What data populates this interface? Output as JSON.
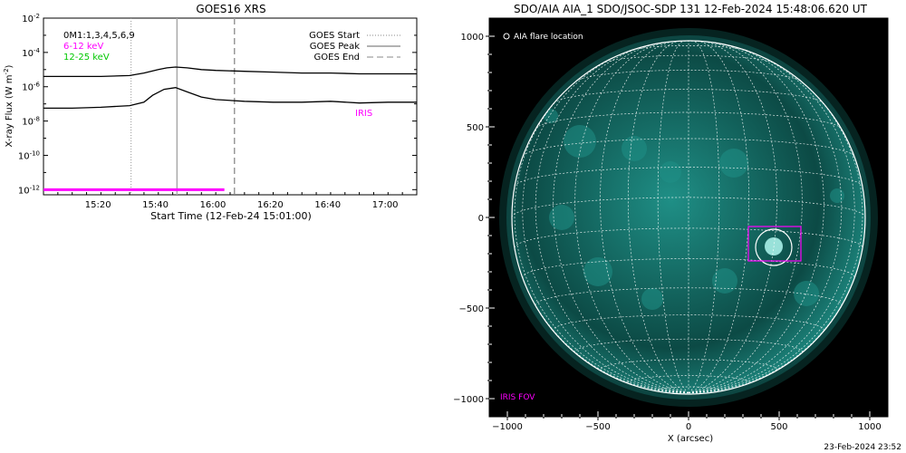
{
  "colors": {
    "iris": "#ff00ff",
    "green": "#00c800",
    "sun_bright": "#a8f0e8",
    "sun_mid": "#1f8f86",
    "sun_dark": "#0c4a45",
    "background": "#000000"
  },
  "chart_data": [
    {
      "type": "line",
      "title": "GOES16 XRS",
      "xlabel": "Start Time (12-Feb-24 15:01:00)",
      "ylabel": "X-ray Flux (W m",
      "ylabel_sup": "-2",
      "ylabel_close": ")",
      "xlim": [
        0,
        130
      ],
      "ylim_log10": [
        -12.3,
        -2
      ],
      "log_scale_y": true,
      "x_ticks": [
        {
          "x": 19,
          "label": "15:20"
        },
        {
          "x": 39,
          "label": "15:40"
        },
        {
          "x": 59,
          "label": "16:00"
        },
        {
          "x": 79,
          "label": "16:20"
        },
        {
          "x": 99,
          "label": "16:40"
        },
        {
          "x": 119,
          "label": "17:00"
        }
      ],
      "y_ticks": [
        {
          "exp": -2,
          "label": "10",
          "sup": "-2"
        },
        {
          "exp": -4,
          "label": "10",
          "sup": "-4"
        },
        {
          "exp": -6,
          "label": "10",
          "sup": "-6"
        },
        {
          "exp": -8,
          "label": "10",
          "sup": "-8"
        },
        {
          "exp": -10,
          "label": "10",
          "sup": "-10"
        },
        {
          "exp": -12,
          "label": "10",
          "sup": "-12"
        }
      ],
      "legend_left": [
        {
          "text": "0M1:1,3,4,5,6,9",
          "color": "#000000"
        },
        {
          "text": "6-12 keV",
          "color": "#ff00ff"
        },
        {
          "text": "12-25 keV",
          "color": "#00c800"
        }
      ],
      "legend_right": [
        {
          "text": "GOES Start",
          "style": "dotted"
        },
        {
          "text": "GOES Peak",
          "style": "solid"
        },
        {
          "text": "GOES End",
          "style": "dashed"
        }
      ],
      "iris_label": "IRIS",
      "event_lines": {
        "start": 30.5,
        "peak": 46.5,
        "end": 66.5
      },
      "iris_bar": {
        "x_start": 0,
        "x_end": 63,
        "flux_exp": -12
      },
      "series": [
        {
          "name": "long",
          "x": [
            0,
            10,
            20,
            30,
            35,
            40,
            43,
            46,
            50,
            55,
            60,
            70,
            80,
            90,
            100,
            110,
            120,
            130
          ],
          "log10_flux": [
            -5.4,
            -5.4,
            -5.4,
            -5.35,
            -5.2,
            -5.0,
            -4.9,
            -4.85,
            -4.9,
            -5.0,
            -5.05,
            -5.1,
            -5.15,
            -5.2,
            -5.2,
            -5.25,
            -5.25,
            -5.25
          ]
        },
        {
          "name": "short",
          "x": [
            0,
            10,
            20,
            30,
            35,
            38,
            42,
            46,
            50,
            55,
            60,
            70,
            80,
            90,
            100,
            110,
            120,
            130
          ],
          "log10_flux": [
            -7.25,
            -7.25,
            -7.2,
            -7.1,
            -6.9,
            -6.5,
            -6.15,
            -6.05,
            -6.3,
            -6.6,
            -6.75,
            -6.85,
            -6.9,
            -6.9,
            -6.85,
            -6.95,
            -6.9,
            -6.9
          ]
        }
      ]
    },
    {
      "type": "scatter",
      "title": "SDO/AIA AIA_1 SDO/JSOC-SDP 131 12-Feb-2024 15:48:06.620 UT",
      "xlabel": "X (arcsec)",
      "xlim": [
        -1100,
        1100
      ],
      "ylim": [
        -1100,
        1100
      ],
      "x_ticks": [
        -1000,
        -500,
        0,
        500,
        1000
      ],
      "y_ticks": [
        1000,
        500,
        0,
        -500,
        -1000
      ],
      "solar_radius_arcsec": 975,
      "legend": "AIA flare location",
      "iris_fov_label": "IRIS FOV",
      "flare_location": {
        "x": 470,
        "y": -165,
        "radius": 100
      },
      "iris_fov": {
        "x1": 330,
        "x2": 620,
        "y1": -50,
        "y2": -240
      },
      "footer": "23-Feb-2024 23:52"
    }
  ]
}
